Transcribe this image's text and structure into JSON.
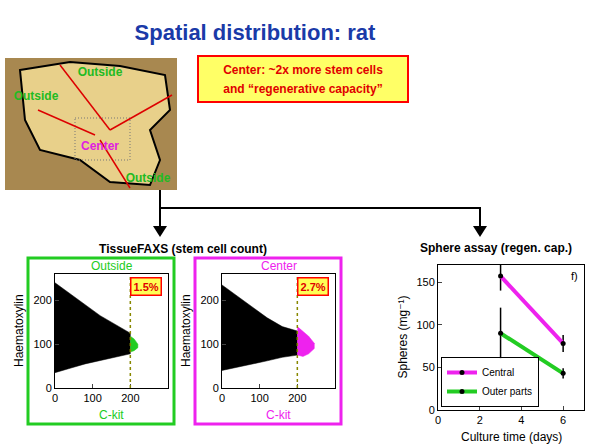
{
  "slide": {
    "title": "Spatial distribution: rat",
    "callout": [
      "Center: ~2x more stem cells",
      "and “regenerative capacity”"
    ],
    "image_labels": [
      {
        "text": "Outside",
        "color": "#22bb22"
      },
      {
        "text": "Outside",
        "color": "#22bb22"
      },
      {
        "text": "Center",
        "color": "#e020e0"
      },
      {
        "text": "Outside",
        "color": "#22bb22"
      }
    ],
    "group_title": "TissueFAXS (stem cell count)"
  },
  "chart_data": [
    {
      "type": "scatter",
      "title": "Outside",
      "color": "#22cc22",
      "x_label": "C-kit",
      "y_label": "Haematoxylin",
      "xlim": [
        0,
        300
      ],
      "ylim": [
        0,
        260
      ],
      "xticks": [
        0,
        100,
        200
      ],
      "yticks": [
        0,
        100,
        200
      ],
      "grid": false,
      "threshold": 200,
      "annotations": [
        "1.5%"
      ],
      "series": [
        {
          "color": "#000000",
          "x": [
            0,
            40,
            80,
            120,
            160,
            200
          ],
          "y_low": [
            35,
            45,
            55,
            62,
            70,
            78
          ],
          "y_high": [
            240,
            215,
            190,
            165,
            145,
            125
          ]
        },
        {
          "color": "#22cc22",
          "x": [
            200,
            210,
            220
          ],
          "y_low": [
            82,
            85,
            92
          ],
          "y_high": [
            118,
            112,
            100
          ]
        }
      ]
    },
    {
      "type": "scatter",
      "title": "Center",
      "color": "#ee22ee",
      "x_label": "C-kit",
      "y_label": "Haematoxylin",
      "xlim": [
        0,
        300
      ],
      "ylim": [
        0,
        260
      ],
      "xticks": [
        0,
        100,
        200
      ],
      "yticks": [
        0,
        100,
        200
      ],
      "grid": false,
      "threshold": 200,
      "annotations": [
        "2.7%"
      ],
      "series": [
        {
          "color": "#000000",
          "x": [
            0,
            40,
            80,
            120,
            160,
            200
          ],
          "y_low": [
            40,
            48,
            55,
            62,
            70,
            75
          ],
          "y_high": [
            235,
            210,
            185,
            160,
            140,
            130
          ]
        },
        {
          "color": "#ee22ee",
          "x": [
            200,
            215,
            230,
            245
          ],
          "y_low": [
            75,
            72,
            78,
            90
          ],
          "y_high": [
            140,
            130,
            118,
            102
          ]
        }
      ]
    },
    {
      "type": "line",
      "title": "Sphere assay (regen. cap.)",
      "x_label": "Culture time (days)",
      "y_label": "Spheres (mg⁻¹)",
      "xlim": [
        0,
        7
      ],
      "ylim": [
        0,
        170
      ],
      "xticks": [
        0,
        2,
        4,
        6
      ],
      "yticks": [
        0,
        50,
        100,
        150
      ],
      "grid": false,
      "legend": "lower left",
      "annotations": [
        "f)"
      ],
      "series": [
        {
          "name": "Central",
          "color": "#ee22ee",
          "x": [
            3,
            6
          ],
          "values": [
            157,
            78
          ],
          "error": [
            17,
            10
          ]
        },
        {
          "name": "Outer parts",
          "color": "#22cc22",
          "x": [
            3,
            6
          ],
          "values": [
            90,
            43
          ],
          "error": [
            30,
            6
          ]
        }
      ]
    }
  ]
}
